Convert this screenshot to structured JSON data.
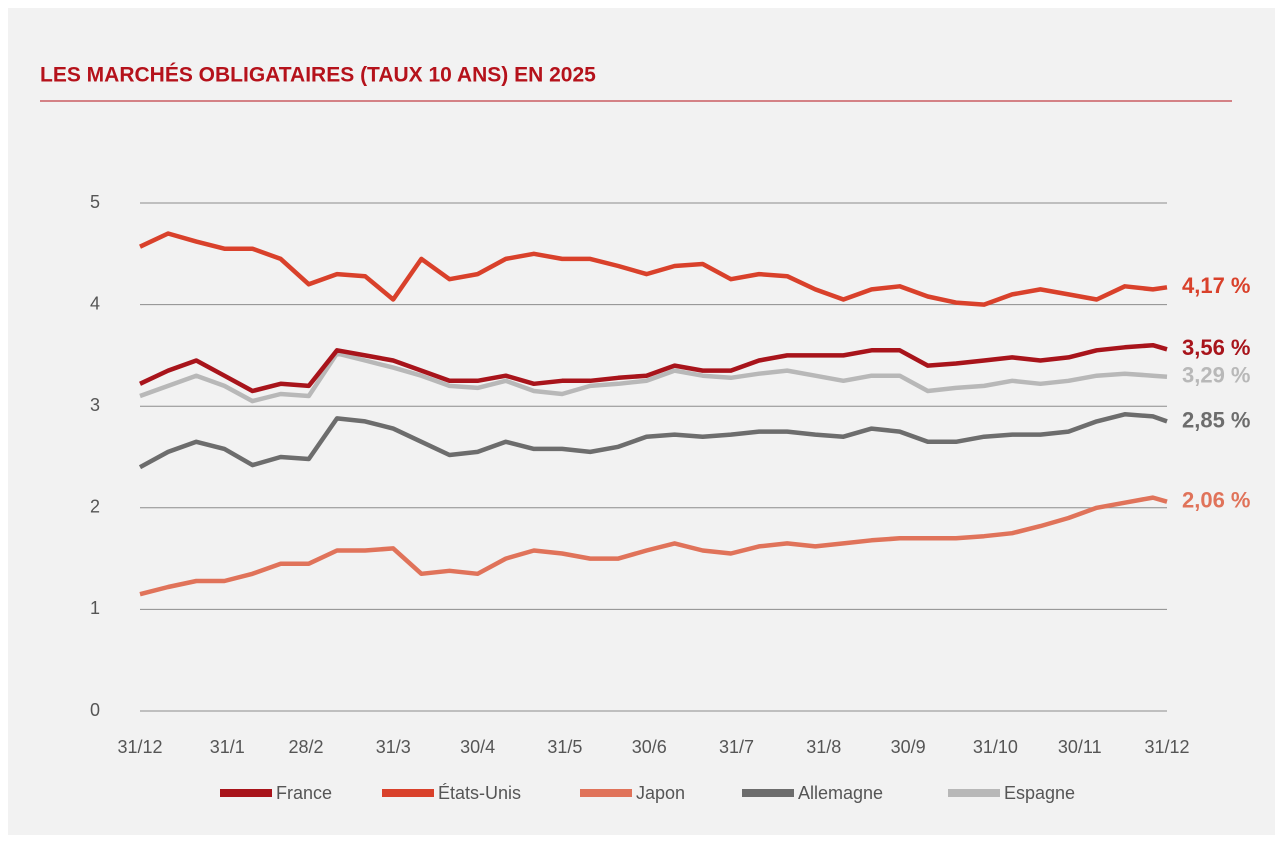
{
  "chart_data": {
    "type": "line",
    "title": "LES MARCHÉS OBLIGATAIRES (TAUX 10 ANS) EN 2025",
    "x": [
      0,
      10,
      20,
      30,
      40,
      50,
      60,
      70,
      80,
      90,
      100,
      110,
      120,
      130,
      140,
      150,
      160,
      170,
      180,
      190,
      200,
      210,
      220,
      230,
      240,
      250,
      260,
      270,
      280,
      290,
      300,
      310,
      320,
      330,
      340,
      350,
      360,
      365
    ],
    "xlim": [
      0,
      365
    ],
    "xticks": [
      {
        "value": 0,
        "label": "31/12"
      },
      {
        "value": 31,
        "label": "31/1"
      },
      {
        "value": 59,
        "label": "28/2"
      },
      {
        "value": 90,
        "label": "31/3"
      },
      {
        "value": 120,
        "label": "30/4"
      },
      {
        "value": 151,
        "label": "31/5"
      },
      {
        "value": 181,
        "label": "30/6"
      },
      {
        "value": 212,
        "label": "31/7"
      },
      {
        "value": 243,
        "label": "31/8"
      },
      {
        "value": 273,
        "label": "30/9"
      },
      {
        "value": 304,
        "label": "31/10"
      },
      {
        "value": 334,
        "label": "30/11"
      },
      {
        "value": 365,
        "label": "31/12"
      }
    ],
    "ylim": [
      0,
      5
    ],
    "yticks": [
      0,
      1,
      2,
      3,
      4,
      5
    ],
    "grid": true,
    "series": [
      {
        "name": "France",
        "color": "#a8141b",
        "values": [
          3.22,
          3.35,
          3.45,
          3.3,
          3.15,
          3.22,
          3.2,
          3.55,
          3.5,
          3.45,
          3.35,
          3.25,
          3.25,
          3.3,
          3.22,
          3.25,
          3.25,
          3.28,
          3.3,
          3.4,
          3.35,
          3.35,
          3.45,
          3.5,
          3.5,
          3.5,
          3.55,
          3.55,
          3.4,
          3.42,
          3.45,
          3.48,
          3.45,
          3.48,
          3.55,
          3.58,
          3.6,
          3.56
        ],
        "value_labels": [
          null,
          null,
          null,
          null,
          null,
          null,
          null,
          null,
          null,
          null,
          null,
          null,
          null,
          null,
          null,
          null,
          null,
          null,
          null,
          null,
          null,
          null,
          null,
          null,
          null,
          null,
          null,
          null,
          null,
          null,
          null,
          null,
          null,
          null,
          null,
          null,
          null,
          "3,56 %"
        ]
      },
      {
        "name": "États-Unis",
        "color": "#d9412b",
        "values": [
          4.57,
          4.7,
          4.62,
          4.55,
          4.55,
          4.45,
          4.2,
          4.3,
          4.28,
          4.05,
          4.45,
          4.25,
          4.3,
          4.45,
          4.5,
          4.45,
          4.45,
          4.38,
          4.3,
          4.38,
          4.4,
          4.25,
          4.3,
          4.28,
          4.15,
          4.05,
          4.15,
          4.18,
          4.08,
          4.02,
          4.0,
          4.1,
          4.15,
          4.1,
          4.05,
          4.18,
          4.15,
          4.17
        ],
        "value_labels": [
          null,
          null,
          null,
          null,
          null,
          null,
          null,
          null,
          null,
          null,
          null,
          null,
          null,
          null,
          null,
          null,
          null,
          null,
          null,
          null,
          null,
          null,
          null,
          null,
          null,
          null,
          null,
          null,
          null,
          null,
          null,
          null,
          null,
          null,
          null,
          null,
          null,
          "4,17 %"
        ]
      },
      {
        "name": "Japon",
        "color": "#e0735a",
        "values": [
          1.15,
          1.22,
          1.28,
          1.28,
          1.35,
          1.45,
          1.45,
          1.58,
          1.58,
          1.6,
          1.35,
          1.38,
          1.35,
          1.5,
          1.58,
          1.55,
          1.5,
          1.5,
          1.58,
          1.65,
          1.58,
          1.55,
          1.62,
          1.65,
          1.62,
          1.65,
          1.68,
          1.7,
          1.7,
          1.7,
          1.72,
          1.75,
          1.82,
          1.9,
          2.0,
          2.05,
          2.1,
          2.06
        ],
        "value_labels": [
          null,
          null,
          null,
          null,
          null,
          null,
          null,
          null,
          null,
          null,
          null,
          null,
          null,
          null,
          null,
          null,
          null,
          null,
          null,
          null,
          null,
          null,
          null,
          null,
          null,
          null,
          null,
          null,
          null,
          null,
          null,
          null,
          null,
          null,
          null,
          null,
          null,
          "2,06 %"
        ]
      },
      {
        "name": "Allemagne",
        "color": "#6d6d6d",
        "values": [
          2.4,
          2.55,
          2.65,
          2.58,
          2.42,
          2.5,
          2.48,
          2.88,
          2.85,
          2.78,
          2.65,
          2.52,
          2.55,
          2.65,
          2.58,
          2.58,
          2.55,
          2.6,
          2.7,
          2.72,
          2.7,
          2.72,
          2.75,
          2.75,
          2.72,
          2.7,
          2.78,
          2.75,
          2.65,
          2.65,
          2.7,
          2.72,
          2.72,
          2.75,
          2.85,
          2.92,
          2.9,
          2.85
        ],
        "value_labels": [
          null,
          null,
          null,
          null,
          null,
          null,
          null,
          null,
          null,
          null,
          null,
          null,
          null,
          null,
          null,
          null,
          null,
          null,
          null,
          null,
          null,
          null,
          null,
          null,
          null,
          null,
          null,
          null,
          null,
          null,
          null,
          null,
          null,
          null,
          null,
          null,
          null,
          "2,85 %"
        ]
      },
      {
        "name": "Espagne",
        "color": "#b8b8b8",
        "values": [
          3.1,
          3.2,
          3.3,
          3.2,
          3.05,
          3.12,
          3.1,
          3.52,
          3.45,
          3.38,
          3.3,
          3.2,
          3.18,
          3.25,
          3.15,
          3.12,
          3.2,
          3.22,
          3.25,
          3.35,
          3.3,
          3.28,
          3.32,
          3.35,
          3.3,
          3.25,
          3.3,
          3.3,
          3.15,
          3.18,
          3.2,
          3.25,
          3.22,
          3.25,
          3.3,
          3.32,
          3.3,
          3.29
        ],
        "value_labels": [
          null,
          null,
          null,
          null,
          null,
          null,
          null,
          null,
          null,
          null,
          null,
          null,
          null,
          null,
          null,
          null,
          null,
          null,
          null,
          null,
          null,
          null,
          null,
          null,
          null,
          null,
          null,
          null,
          null,
          null,
          null,
          null,
          null,
          null,
          null,
          null,
          null,
          "3,29 %"
        ]
      }
    ]
  }
}
